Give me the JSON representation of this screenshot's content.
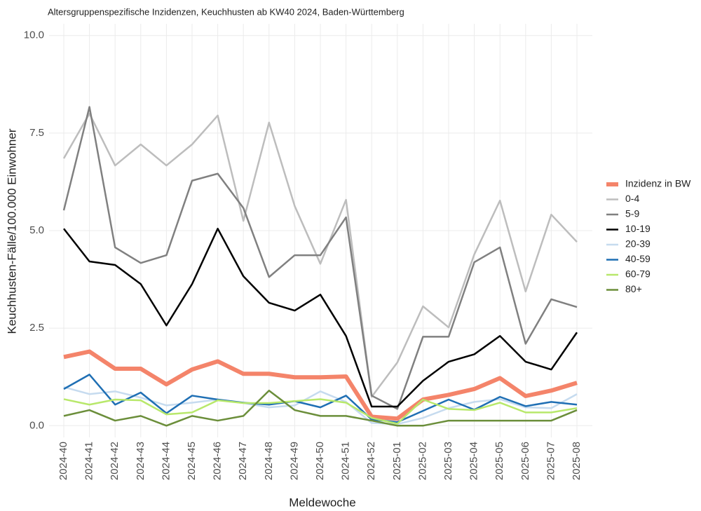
{
  "chart_data": {
    "type": "line",
    "title": "Altersgruppenspezifische Inzidenzen, Keuchhusten ab KW40 2024, Baden-Württemberg",
    "x_label": "Meldewoche",
    "y_label": "Keuchhusten-Fälle/100.000 Einwohner",
    "categories": [
      "2024-40",
      "2024-41",
      "2024-42",
      "2024-43",
      "2024-44",
      "2024-45",
      "2024-46",
      "2024-47",
      "2024-48",
      "2024-49",
      "2024-50",
      "2024-51",
      "2024-52",
      "2025-01",
      "2025-02",
      "2025-03",
      "2025-04",
      "2025-05",
      "2025-06",
      "2025-07",
      "2025-08"
    ],
    "ylim": [
      -0.3,
      10.3
    ],
    "yticks": [
      {
        "value": 0,
        "label": "0.0"
      },
      2.5,
      {
        "value": 5,
        "label": "5.0"
      },
      7.5,
      {
        "value": 10,
        "label": "10.0"
      }
    ],
    "grid": true,
    "legend": "right",
    "series": [
      {
        "name": "Inzidenz in BW",
        "color": "#f4846a",
        "line_width": 6,
        "values": [
          1.76,
          1.9,
          1.46,
          1.46,
          1.06,
          1.44,
          1.65,
          1.33,
          1.33,
          1.24,
          1.24,
          1.26,
          0.23,
          0.18,
          0.67,
          0.79,
          0.94,
          1.22,
          0.76,
          0.9,
          1.1
        ]
      },
      {
        "name": "0-4",
        "color": "#bdbdbd",
        "line_width": 2.5,
        "values": [
          6.85,
          8.0,
          6.67,
          7.21,
          6.67,
          7.21,
          7.95,
          5.25,
          7.77,
          5.63,
          4.15,
          5.79,
          0.74,
          1.62,
          3.06,
          2.52,
          4.39,
          5.77,
          3.44,
          5.41,
          4.71
        ]
      },
      {
        "name": "5-9",
        "color": "#808080",
        "line_width": 2.5,
        "values": [
          5.52,
          8.17,
          4.57,
          4.17,
          4.37,
          6.28,
          6.46,
          5.58,
          3.81,
          4.37,
          4.37,
          5.34,
          0.77,
          0.43,
          2.28,
          2.28,
          4.19,
          4.57,
          2.1,
          3.24,
          3.04
        ]
      },
      {
        "name": "10-19",
        "color": "#000000",
        "line_width": 2.5,
        "values": [
          5.05,
          4.21,
          4.12,
          3.63,
          2.57,
          3.63,
          5.05,
          3.83,
          3.15,
          2.95,
          3.36,
          2.3,
          0.49,
          0.49,
          1.15,
          1.64,
          1.83,
          2.3,
          1.64,
          1.44,
          2.39
        ]
      },
      {
        "name": "20-39",
        "color": "#c6dbef",
        "line_width": 2.5,
        "values": [
          0.99,
          0.81,
          0.88,
          0.72,
          0.52,
          0.59,
          0.67,
          0.58,
          0.47,
          0.52,
          0.88,
          0.61,
          0.07,
          0.04,
          0.2,
          0.45,
          0.61,
          0.68,
          0.47,
          0.45,
          0.81
        ]
      },
      {
        "name": "40-59",
        "color": "#1f6fb4",
        "line_width": 2.5,
        "values": [
          0.94,
          1.31,
          0.54,
          0.85,
          0.32,
          0.77,
          0.67,
          0.59,
          0.54,
          0.63,
          0.47,
          0.77,
          0.16,
          0.09,
          0.38,
          0.67,
          0.41,
          0.74,
          0.5,
          0.61,
          0.54
        ]
      },
      {
        "name": "60-79",
        "color": "#b8e86b",
        "line_width": 2.5,
        "values": [
          0.68,
          0.54,
          0.67,
          0.65,
          0.29,
          0.34,
          0.65,
          0.58,
          0.58,
          0.63,
          0.68,
          0.59,
          0.2,
          0.05,
          0.67,
          0.43,
          0.4,
          0.59,
          0.34,
          0.34,
          0.45
        ]
      },
      {
        "name": "80+",
        "color": "#6b8e3a",
        "line_width": 2.5,
        "values": [
          0.25,
          0.4,
          0.13,
          0.25,
          0,
          0.25,
          0.13,
          0.25,
          0.9,
          0.4,
          0.25,
          0.25,
          0.13,
          0,
          0,
          0.13,
          0.13,
          0.13,
          0.13,
          0.13,
          0.4
        ]
      }
    ]
  }
}
